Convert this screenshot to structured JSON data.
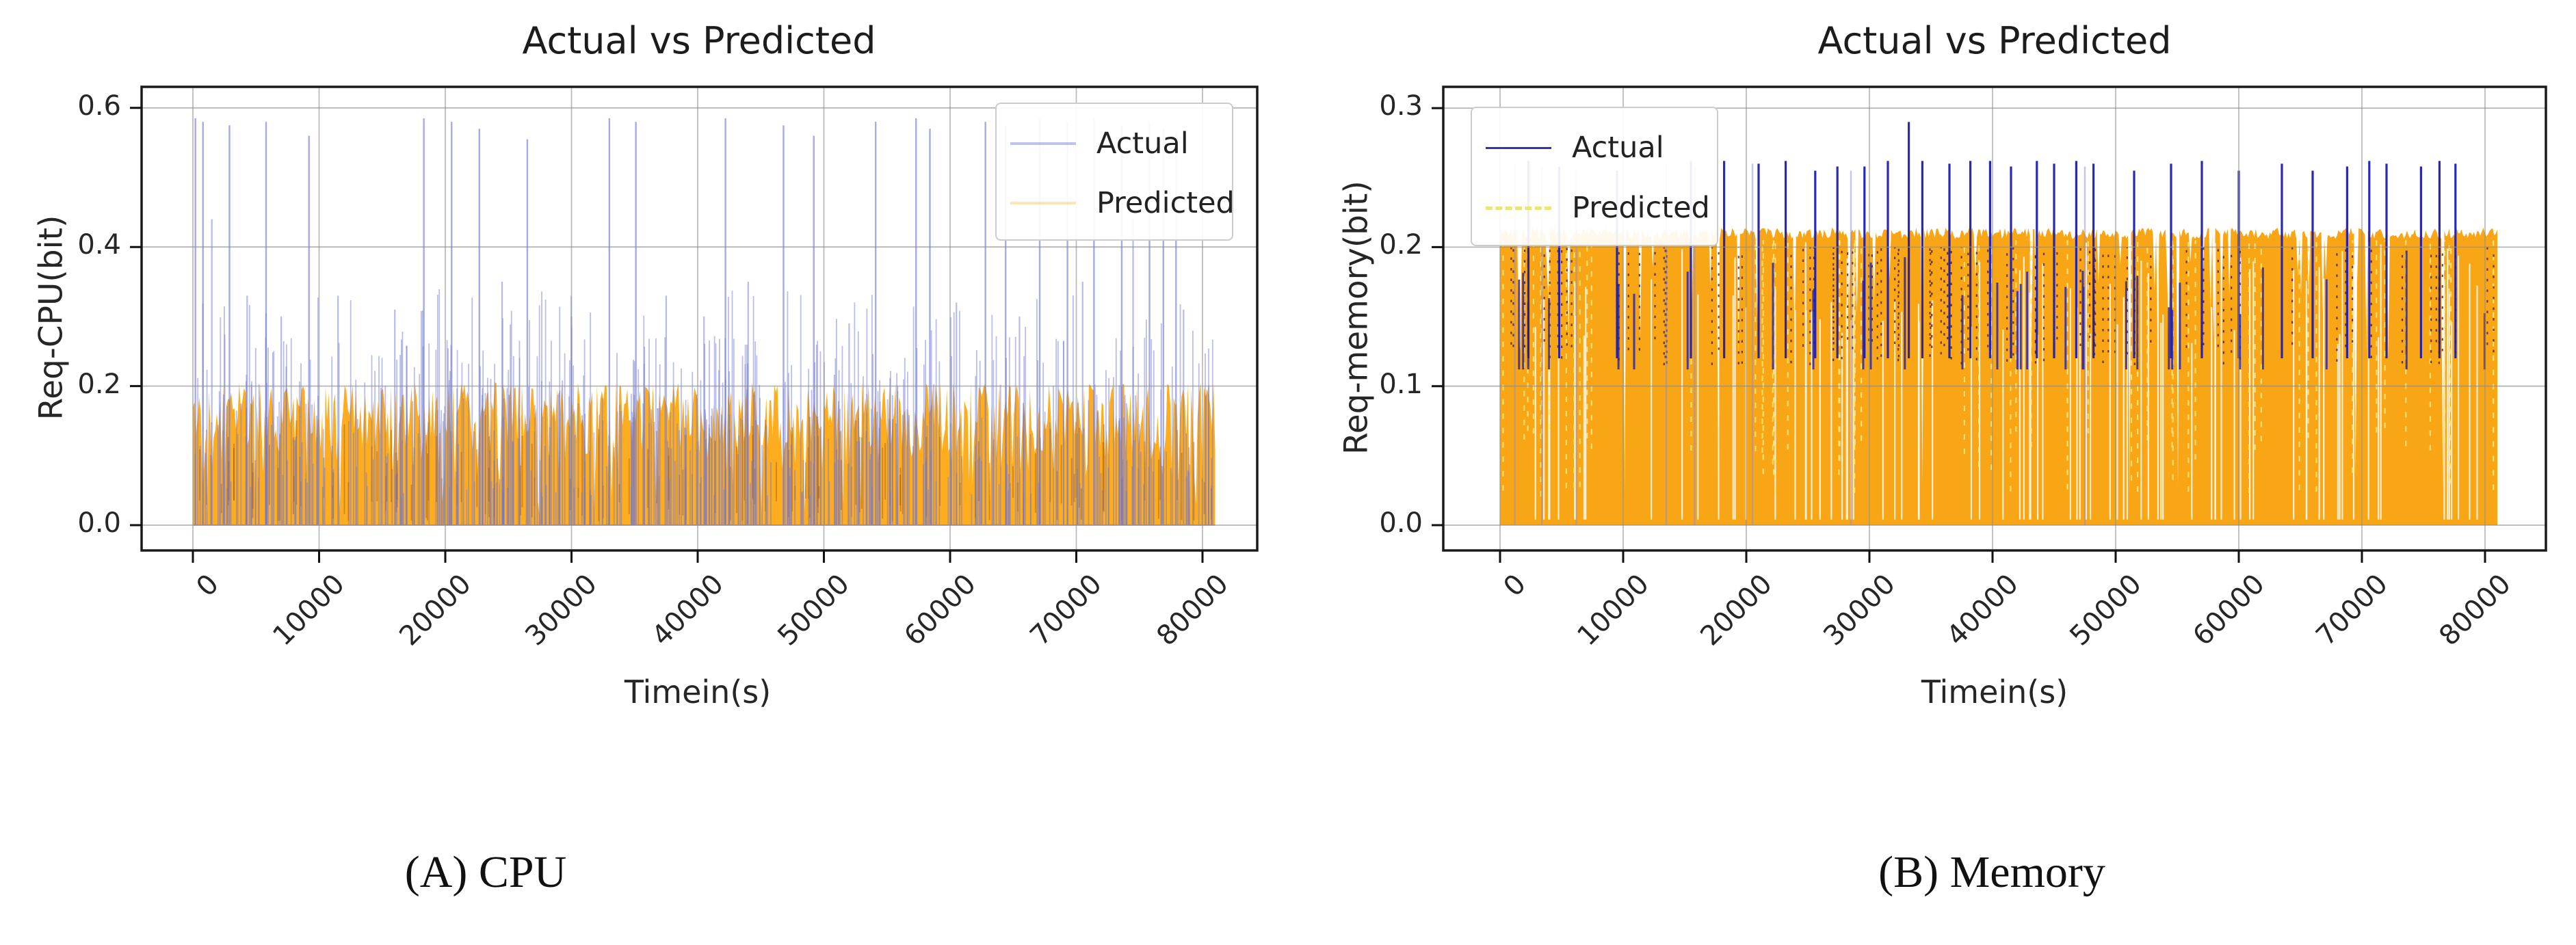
{
  "page": {
    "background": "#ffffff",
    "description": "Two-panel figure comparing actual vs predicted resource requests over time"
  },
  "chart_data": [
    {
      "id": "cpu",
      "type": "line",
      "title": "Actual vs Predicted",
      "xlabel": "Timein(s)",
      "ylabel": "Req-CPU(bit)",
      "caption": "(A) CPU",
      "legend_position": "upper right",
      "x_ticks": [
        0,
        10000,
        20000,
        30000,
        40000,
        50000,
        60000,
        70000,
        80000
      ],
      "x_tick_labels": [
        "0",
        "10000",
        "20000",
        "30000",
        "40000",
        "50000",
        "60000",
        "70000",
        "80000"
      ],
      "y_ticks": [
        0.0,
        0.2,
        0.4,
        0.6
      ],
      "y_tick_labels": [
        "0.0",
        "0.2",
        "0.4",
        "0.6"
      ],
      "xlim": [
        -4400,
        85400
      ],
      "ylim": [
        -0.03,
        0.63
      ],
      "x_data_range": [
        0,
        81000
      ],
      "grid": true,
      "series": [
        {
          "name": "Actual",
          "color": "#6f77d4",
          "alpha": 0.48,
          "legend_alpha": 0.45,
          "line_style": "solid",
          "description": "Dense noisy spiky band from 0 up to ~0.28 with frequent thin spikes; tall spikes reach ~0.585",
          "band_low_range": [
            0.04,
            0.18
          ],
          "band_mid_range": [
            0.18,
            0.27
          ],
          "tall_spikes": [
            {
              "x": 200,
              "y": 0.585
            },
            {
              "x": 800,
              "y": 0.58
            },
            {
              "x": 2900,
              "y": 0.575
            },
            {
              "x": 5800,
              "y": 0.58
            },
            {
              "x": 9200,
              "y": 0.56
            },
            {
              "x": 18300,
              "y": 0.585
            },
            {
              "x": 20500,
              "y": 0.58
            },
            {
              "x": 22700,
              "y": 0.57
            },
            {
              "x": 26500,
              "y": 0.555
            },
            {
              "x": 33000,
              "y": 0.585
            },
            {
              "x": 35100,
              "y": 0.58
            },
            {
              "x": 42200,
              "y": 0.585
            },
            {
              "x": 46800,
              "y": 0.575
            },
            {
              "x": 49200,
              "y": 0.56
            },
            {
              "x": 54100,
              "y": 0.58
            },
            {
              "x": 57300,
              "y": 0.585
            },
            {
              "x": 58400,
              "y": 0.57
            },
            {
              "x": 62800,
              "y": 0.58
            },
            {
              "x": 64400,
              "y": 0.575
            },
            {
              "x": 67100,
              "y": 0.585
            },
            {
              "x": 69300,
              "y": 0.58
            },
            {
              "x": 71400,
              "y": 0.585
            },
            {
              "x": 73600,
              "y": 0.575
            },
            {
              "x": 75800,
              "y": 0.58
            },
            {
              "x": 76900,
              "y": 0.57
            },
            {
              "x": 77900,
              "y": 0.565
            }
          ],
          "mid_spikes": [
            {
              "x": 1500,
              "y": 0.44
            },
            {
              "x": 4300,
              "y": 0.33
            },
            {
              "x": 7000,
              "y": 0.3
            },
            {
              "x": 11500,
              "y": 0.33
            },
            {
              "x": 16000,
              "y": 0.31
            },
            {
              "x": 24500,
              "y": 0.35
            },
            {
              "x": 30000,
              "y": 0.3
            },
            {
              "x": 37500,
              "y": 0.33
            },
            {
              "x": 40500,
              "y": 0.3
            },
            {
              "x": 44000,
              "y": 0.35
            },
            {
              "x": 52000,
              "y": 0.29
            },
            {
              "x": 60500,
              "y": 0.32
            },
            {
              "x": 65500,
              "y": 0.3
            },
            {
              "x": 70500,
              "y": 0.35
            },
            {
              "x": 74500,
              "y": 0.44
            },
            {
              "x": 78500,
              "y": 0.31
            }
          ]
        },
        {
          "name": "Predicted",
          "color": "#ffa408",
          "alpha": 0.9,
          "legend_alpha": 0.3,
          "line_style": "solid",
          "description": "Dense filled orange band from 0 with fluctuating top between ~0.05 and ~0.205, capped near 0.2",
          "band_top_range": [
            0.05,
            0.205
          ],
          "cap_value": 0.205
        }
      ],
      "pattern": {
        "seed": 42,
        "columns": 640,
        "actual_strokes": 560,
        "dark_striations": 120
      }
    },
    {
      "id": "memory",
      "type": "line",
      "title": "Actual vs Predicted",
      "xlabel": "Timein(s)",
      "ylabel": "Req-memory(bit)",
      "caption": "(B) Memory",
      "legend_position": "upper left",
      "x_ticks": [
        0,
        10000,
        20000,
        30000,
        40000,
        50000,
        60000,
        70000,
        80000
      ],
      "x_tick_labels": [
        "0",
        "10000",
        "20000",
        "30000",
        "40000",
        "50000",
        "60000",
        "70000",
        "80000"
      ],
      "y_ticks": [
        0.0,
        0.1,
        0.2,
        0.3
      ],
      "y_tick_labels": [
        "0.0",
        "0.1",
        "0.2",
        "0.3"
      ],
      "xlim": [
        -4600,
        85600
      ],
      "ylim": [
        -0.015,
        0.315
      ],
      "x_data_range": [
        0,
        81000
      ],
      "grid": true,
      "series": [
        {
          "name": "Actual",
          "color": "#1d1dae",
          "alpha": 0.95,
          "legend_alpha": 0.9,
          "line_style": "solid",
          "description": "Mostly hidden under predicted band; dark navy spikes emerge above ~0.21 reaching ~0.26, max ~0.29 near t=33200",
          "max_value": 0.29,
          "spikes": [
            {
              "x": 2300,
              "y": 0.262
            },
            {
              "x": 4800,
              "y": 0.258
            },
            {
              "x": 9500,
              "y": 0.255
            },
            {
              "x": 15500,
              "y": 0.262
            },
            {
              "x": 18200,
              "y": 0.262
            },
            {
              "x": 21000,
              "y": 0.26
            },
            {
              "x": 23200,
              "y": 0.262
            },
            {
              "x": 25600,
              "y": 0.255
            },
            {
              "x": 27400,
              "y": 0.258
            },
            {
              "x": 29600,
              "y": 0.258
            },
            {
              "x": 31500,
              "y": 0.262
            },
            {
              "x": 33200,
              "y": 0.29
            },
            {
              "x": 34300,
              "y": 0.262
            },
            {
              "x": 36500,
              "y": 0.26
            },
            {
              "x": 38200,
              "y": 0.262
            },
            {
              "x": 39800,
              "y": 0.262
            },
            {
              "x": 41500,
              "y": 0.258
            },
            {
              "x": 43600,
              "y": 0.262
            },
            {
              "x": 45000,
              "y": 0.26
            },
            {
              "x": 46800,
              "y": 0.262
            },
            {
              "x": 48200,
              "y": 0.26
            },
            {
              "x": 51500,
              "y": 0.255
            },
            {
              "x": 54500,
              "y": 0.26
            },
            {
              "x": 57000,
              "y": 0.262
            },
            {
              "x": 60000,
              "y": 0.255
            },
            {
              "x": 63500,
              "y": 0.26
            },
            {
              "x": 66000,
              "y": 0.255
            },
            {
              "x": 68800,
              "y": 0.258
            },
            {
              "x": 70600,
              "y": 0.262
            },
            {
              "x": 72000,
              "y": 0.26
            },
            {
              "x": 74800,
              "y": 0.258
            },
            {
              "x": 76300,
              "y": 0.262
            },
            {
              "x": 77600,
              "y": 0.26
            }
          ],
          "ghost_spikes": [
            {
              "x": 1200,
              "y": 0.26
            },
            {
              "x": 3400,
              "y": 0.258
            },
            {
              "x": 6200,
              "y": 0.255
            },
            {
              "x": 13500,
              "y": 0.26
            },
            {
              "x": 15800,
              "y": 0.258
            },
            {
              "x": 20500,
              "y": 0.26
            },
            {
              "x": 28500,
              "y": 0.255
            },
            {
              "x": 47500,
              "y": 0.258
            }
          ]
        },
        {
          "name": "Predicted",
          "color": "#f8a009",
          "alpha": 0.95,
          "legend_alpha": 0.9,
          "legend_color": "#e9e578",
          "line_style": "dashed",
          "description": "Dense dashed orange band filling 0 to a nearly flat top at ~0.21 with occasional dips",
          "band_top": 0.21,
          "dip_range": [
            0.12,
            0.19
          ]
        }
      ],
      "pattern": {
        "seed": 7,
        "columns": 640,
        "white_striations": 85,
        "yellow_dashes": 55,
        "dark_dots": 85,
        "navy_chunks": 30
      }
    }
  ],
  "style": {
    "grid_color": "#8f8f8f",
    "spine_color": "#1a1a1a",
    "tick_color": "#111111",
    "cpu_dark_striation_color": "rgba(140,70,15,0.4)",
    "mem_white_striation_color": "rgba(255,255,255,0.8)",
    "mem_yellow_dash_color": "rgba(255,230,120,0.9)",
    "mem_dark_dot_color": "rgba(70,25,45,0.8)",
    "mem_navy_chunk_color": "rgba(40,40,175,0.85)",
    "ghost_spike_color": "rgba(135,140,225,0.5)"
  }
}
